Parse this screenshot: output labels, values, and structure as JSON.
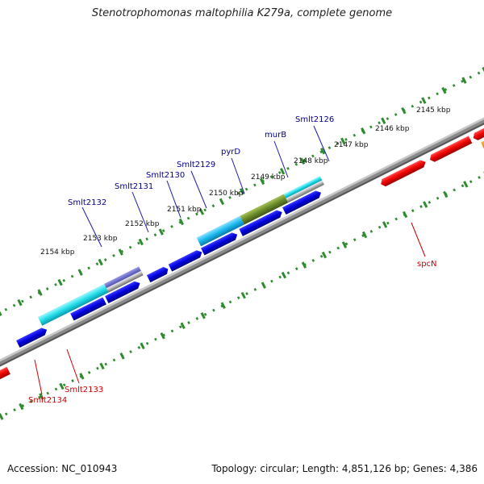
{
  "title": "Stenotrophomonas maltophilia K279a, complete genome",
  "footer": {
    "accession": "Accession: NC_010943",
    "topology": "Topology: circular; Length: 4,851,126 bp; Genes: 4,386"
  },
  "colors": {
    "forward_gene": "#0000dd",
    "reverse_gene": "#ee0000",
    "backbone": "#888888",
    "ruler_dots": "#2e8b2e",
    "label_forward": "#00008b",
    "label_reverse": "#cc0000"
  },
  "kbp_ticks": [
    {
      "label": "2145 kbp",
      "kbp": 2145
    },
    {
      "label": "2146 kbp",
      "kbp": 2146
    },
    {
      "label": "2147 kbp",
      "kbp": 2147
    },
    {
      "label": "2148 kbp",
      "kbp": 2148
    },
    {
      "label": "2149 kbp",
      "kbp": 2149
    },
    {
      "label": "2150 kbp",
      "kbp": 2150
    },
    {
      "label": "2151 kbp",
      "kbp": 2151
    },
    {
      "label": "2152 kbp",
      "kbp": 2152
    },
    {
      "label": "2153 kbp",
      "kbp": 2153
    },
    {
      "label": "2154 kbp",
      "kbp": 2154
    }
  ],
  "gene_labels": [
    {
      "name": "Smlt2126",
      "strand": "forward"
    },
    {
      "name": "murB",
      "strand": "forward"
    },
    {
      "name": "pyrD",
      "strand": "forward"
    },
    {
      "name": "Smlt2129",
      "strand": "forward"
    },
    {
      "name": "Smlt2130",
      "strand": "forward"
    },
    {
      "name": "Smlt2131",
      "strand": "forward"
    },
    {
      "name": "Smlt2132",
      "strand": "forward"
    },
    {
      "name": "spcN",
      "strand": "reverse"
    },
    {
      "name": "Smlt2133",
      "strand": "reverse"
    },
    {
      "name": "Smlt2134",
      "strand": "reverse"
    }
  ]
}
